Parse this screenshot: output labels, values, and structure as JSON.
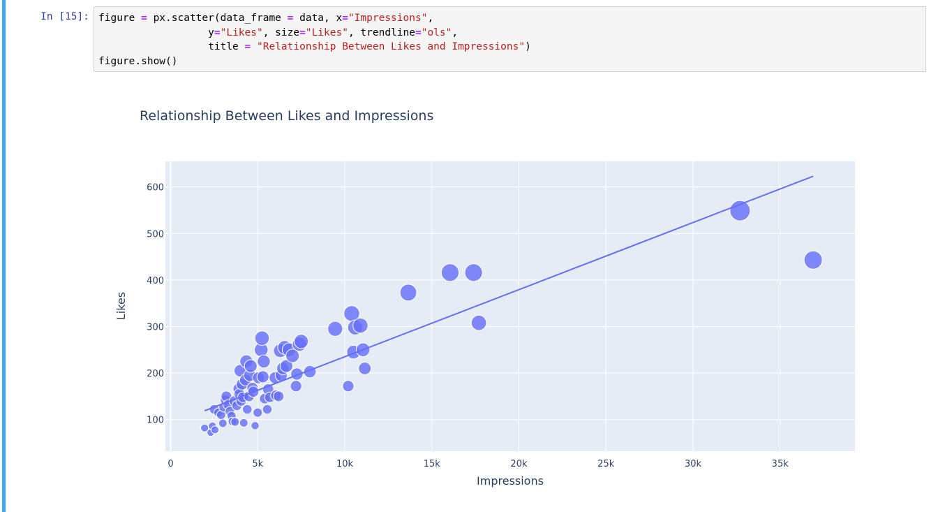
{
  "notebook": {
    "prompt": "In [15]:",
    "code": {
      "line1": {
        "a": "figure ",
        "b": "=",
        "c": " px.scatter(data_frame ",
        "d": "=",
        "e": " data, x",
        "f": "=",
        "g": "\"Impressions\"",
        "h": ","
      },
      "line2": {
        "a": "                  y",
        "b": "=",
        "c": "\"Likes\"",
        "d": ", size",
        "e": "=",
        "f": "\"Likes\"",
        "g": ", trendline",
        "h": "=",
        "i": "\"ols\"",
        "j": ","
      },
      "line3": {
        "a": "                  title ",
        "b": "=",
        "c": " ",
        "d": "\"Relationship Between Likes and Impressions\"",
        "e": ")"
      },
      "line4": {
        "a": "figure.show()"
      }
    },
    "cell_bar_color": "#42a5f5"
  },
  "chart_data": {
    "type": "scatter",
    "title": "Relationship Between Likes and Impressions",
    "xlabel": "Impressions",
    "ylabel": "Likes",
    "xlim": [
      -300,
      39300
    ],
    "ylim": [
      32,
      655
    ],
    "grid": true,
    "x_ticks": [
      0,
      5000,
      10000,
      15000,
      20000,
      25000,
      30000,
      35000
    ],
    "x_tick_labels": [
      "0",
      "5k",
      "10k",
      "15k",
      "20k",
      "25k",
      "30k",
      "35k"
    ],
    "y_ticks": [
      100,
      200,
      300,
      400,
      500,
      600
    ],
    "y_tick_labels": [
      "100",
      "200",
      "300",
      "400",
      "500",
      "600"
    ],
    "colors": {
      "marker": "#636efa",
      "trendline": "#636efa",
      "plot_bg": "#e5ecf6",
      "grid": "#ffffff",
      "text": "#2a3f5f"
    },
    "size_field": "Likes",
    "points": [
      {
        "x": 1950,
        "y": 82
      },
      {
        "x": 2300,
        "y": 72
      },
      {
        "x": 2400,
        "y": 86
      },
      {
        "x": 2550,
        "y": 78
      },
      {
        "x": 2500,
        "y": 122
      },
      {
        "x": 2750,
        "y": 115
      },
      {
        "x": 2900,
        "y": 110
      },
      {
        "x": 3000,
        "y": 92
      },
      {
        "x": 3050,
        "y": 127
      },
      {
        "x": 3150,
        "y": 142
      },
      {
        "x": 3200,
        "y": 150
      },
      {
        "x": 3300,
        "y": 132
      },
      {
        "x": 3400,
        "y": 118
      },
      {
        "x": 3500,
        "y": 108
      },
      {
        "x": 3550,
        "y": 96
      },
      {
        "x": 3650,
        "y": 140
      },
      {
        "x": 3700,
        "y": 95
      },
      {
        "x": 3800,
        "y": 130
      },
      {
        "x": 3900,
        "y": 166
      },
      {
        "x": 3950,
        "y": 155
      },
      {
        "x": 4000,
        "y": 205
      },
      {
        "x": 4050,
        "y": 140
      },
      {
        "x": 4100,
        "y": 176
      },
      {
        "x": 4150,
        "y": 148
      },
      {
        "x": 4200,
        "y": 93
      },
      {
        "x": 4300,
        "y": 185
      },
      {
        "x": 4350,
        "y": 225
      },
      {
        "x": 4400,
        "y": 122
      },
      {
        "x": 4500,
        "y": 150
      },
      {
        "x": 4550,
        "y": 195
      },
      {
        "x": 4600,
        "y": 215
      },
      {
        "x": 4700,
        "y": 168
      },
      {
        "x": 4750,
        "y": 160
      },
      {
        "x": 4850,
        "y": 87
      },
      {
        "x": 5000,
        "y": 115
      },
      {
        "x": 5050,
        "y": 190
      },
      {
        "x": 5200,
        "y": 250
      },
      {
        "x": 5250,
        "y": 275
      },
      {
        "x": 5300,
        "y": 192
      },
      {
        "x": 5350,
        "y": 225
      },
      {
        "x": 5400,
        "y": 145
      },
      {
        "x": 5550,
        "y": 122
      },
      {
        "x": 5600,
        "y": 165
      },
      {
        "x": 5700,
        "y": 148
      },
      {
        "x": 6000,
        "y": 190
      },
      {
        "x": 6050,
        "y": 152
      },
      {
        "x": 6200,
        "y": 150
      },
      {
        "x": 6300,
        "y": 248
      },
      {
        "x": 6350,
        "y": 195
      },
      {
        "x": 6450,
        "y": 210
      },
      {
        "x": 6550,
        "y": 255
      },
      {
        "x": 6650,
        "y": 215
      },
      {
        "x": 6800,
        "y": 250
      },
      {
        "x": 7000,
        "y": 237
      },
      {
        "x": 7200,
        "y": 172
      },
      {
        "x": 7250,
        "y": 198
      },
      {
        "x": 7400,
        "y": 262
      },
      {
        "x": 7500,
        "y": 268
      },
      {
        "x": 8000,
        "y": 203
      },
      {
        "x": 9450,
        "y": 295
      },
      {
        "x": 10200,
        "y": 172
      },
      {
        "x": 10400,
        "y": 328
      },
      {
        "x": 10500,
        "y": 245
      },
      {
        "x": 10600,
        "y": 298
      },
      {
        "x": 10900,
        "y": 302
      },
      {
        "x": 11050,
        "y": 250
      },
      {
        "x": 11150,
        "y": 210
      },
      {
        "x": 13650,
        "y": 373
      },
      {
        "x": 16050,
        "y": 416
      },
      {
        "x": 17400,
        "y": 416
      },
      {
        "x": 17700,
        "y": 308
      },
      {
        "x": 32700,
        "y": 549
      },
      {
        "x": 36900,
        "y": 443
      }
    ],
    "trendline": {
      "x": [
        1950,
        36900
      ],
      "y": [
        119,
        623
      ]
    }
  }
}
